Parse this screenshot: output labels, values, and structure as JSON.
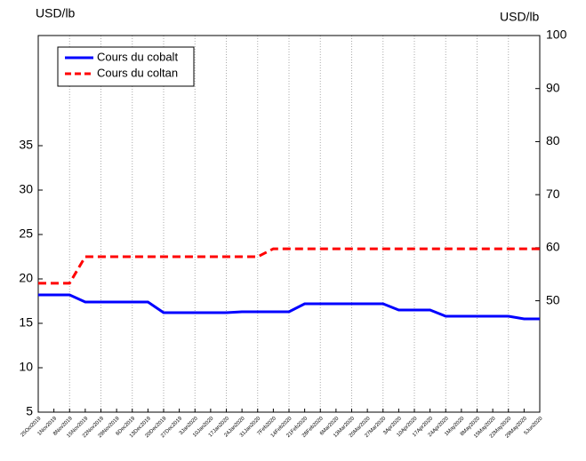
{
  "chart_data": {
    "type": "line",
    "ylabel": "USD/lb",
    "y2label": "USD/lb",
    "categories": [
      "25Oct2019",
      "1Nov2019",
      "8Nov2019",
      "15Nov2019",
      "22Nov2019",
      "29Nov2019",
      "6Dec2019",
      "13Dec2019",
      "20Dec2019",
      "27Dec2019",
      "3Jan2020",
      "10Jan2020",
      "17Jan2020",
      "24Jan2020",
      "31Jan2020",
      "7Feb2020",
      "14Feb2020",
      "21Feb2020",
      "28Feb2020",
      "6Mar2020",
      "13Mar2020",
      "20Mar2020",
      "27Mar2020",
      "3Apr2020",
      "10Apr2020",
      "17Apr2020",
      "24Apr2020",
      "1May2020",
      "8May2020",
      "15May2020",
      "22May2020",
      "29May2020",
      "5Jun2020"
    ],
    "series": [
      {
        "name": "Cours du cobalt",
        "color": "#0000ff",
        "linestyle": "solid",
        "axis": "y",
        "values": [
          18.2,
          18.2,
          18.2,
          17.4,
          17.4,
          17.4,
          17.4,
          17.4,
          16.2,
          16.2,
          16.2,
          16.2,
          16.2,
          16.3,
          16.3,
          16.3,
          16.3,
          17.2,
          17.2,
          17.2,
          17.2,
          17.2,
          17.2,
          16.5,
          16.5,
          16.5,
          15.8,
          15.8,
          15.8,
          15.8,
          15.8,
          15.5,
          15.5
        ]
      },
      {
        "name": "Cours du coltan",
        "color": "#ff0000",
        "linestyle": "dashed",
        "axis": "y2",
        "values": [
          53.3,
          53.3,
          53.3,
          58.3,
          58.3,
          58.3,
          58.3,
          58.3,
          58.3,
          58.3,
          58.3,
          58.3,
          58.3,
          58.3,
          58.3,
          59.8,
          59.8,
          59.8,
          59.8,
          59.8,
          59.8,
          59.8,
          59.8,
          59.8,
          59.8,
          59.8,
          59.8,
          59.8,
          59.8,
          59.8,
          59.8,
          59.8,
          59.8
        ]
      }
    ],
    "ylim": [
      5,
      47.4
    ],
    "yticks": [
      5,
      10,
      15,
      20,
      25,
      30,
      35
    ],
    "y2lim": [
      29,
      100
    ],
    "y2ticks": [
      50,
      60,
      70,
      80,
      90,
      100
    ],
    "grid": true,
    "legend": "upper left"
  }
}
